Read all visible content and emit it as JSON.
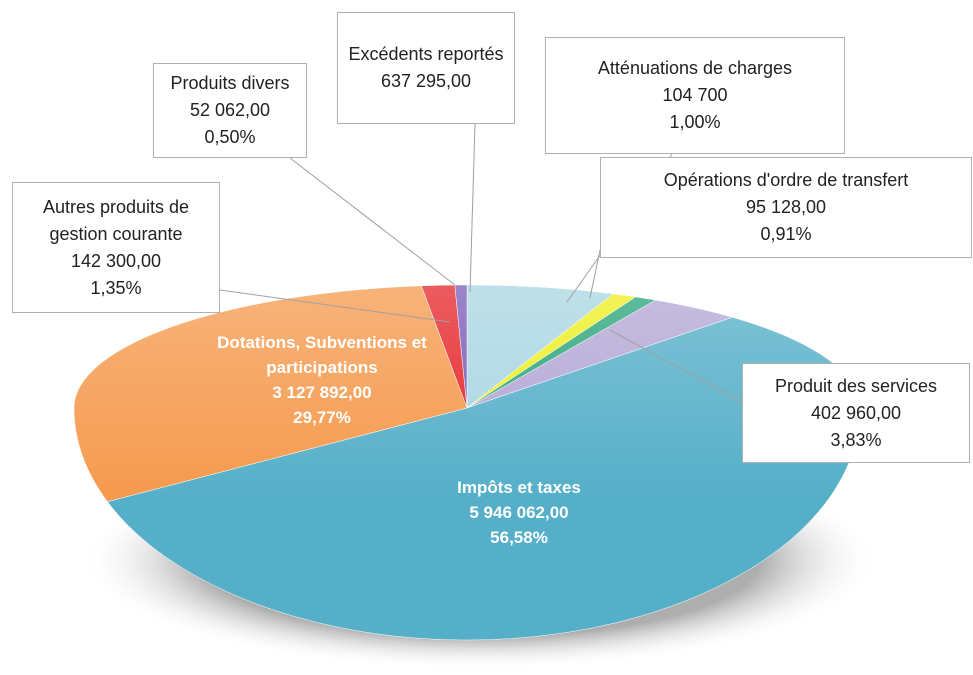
{
  "chart_data": {
    "type": "pie",
    "categories": [
      "Excédents reportés",
      "Atténuations de charges",
      "Opérations d'ordre de transfert",
      "Produit des services",
      "Impôts et taxes",
      "Dotations, Subventions et participations",
      "Autres produits de gestion courante",
      "Produits divers"
    ],
    "values": [
      637295,
      104700,
      95128,
      402960,
      5946062,
      3127892,
      142300,
      52062
    ],
    "value_labels": [
      "637 295,00",
      "104 700",
      "95 128,00",
      "402 960,00",
      "5 946 062,00",
      "3 127 892,00",
      "142 300,00",
      "52 062,00"
    ],
    "percent_labels": [
      null,
      "1,00%",
      "0,91%",
      "3,83%",
      "56,58%",
      "29,77%",
      "1,35%",
      "0,50%"
    ],
    "colors": [
      "#a9d6e2",
      "#eeee22",
      "#2aa57a",
      "#b3a6d4",
      "#55afc8",
      "#f59a4e",
      "#e5262a",
      "#7b5bb8"
    ]
  }
}
